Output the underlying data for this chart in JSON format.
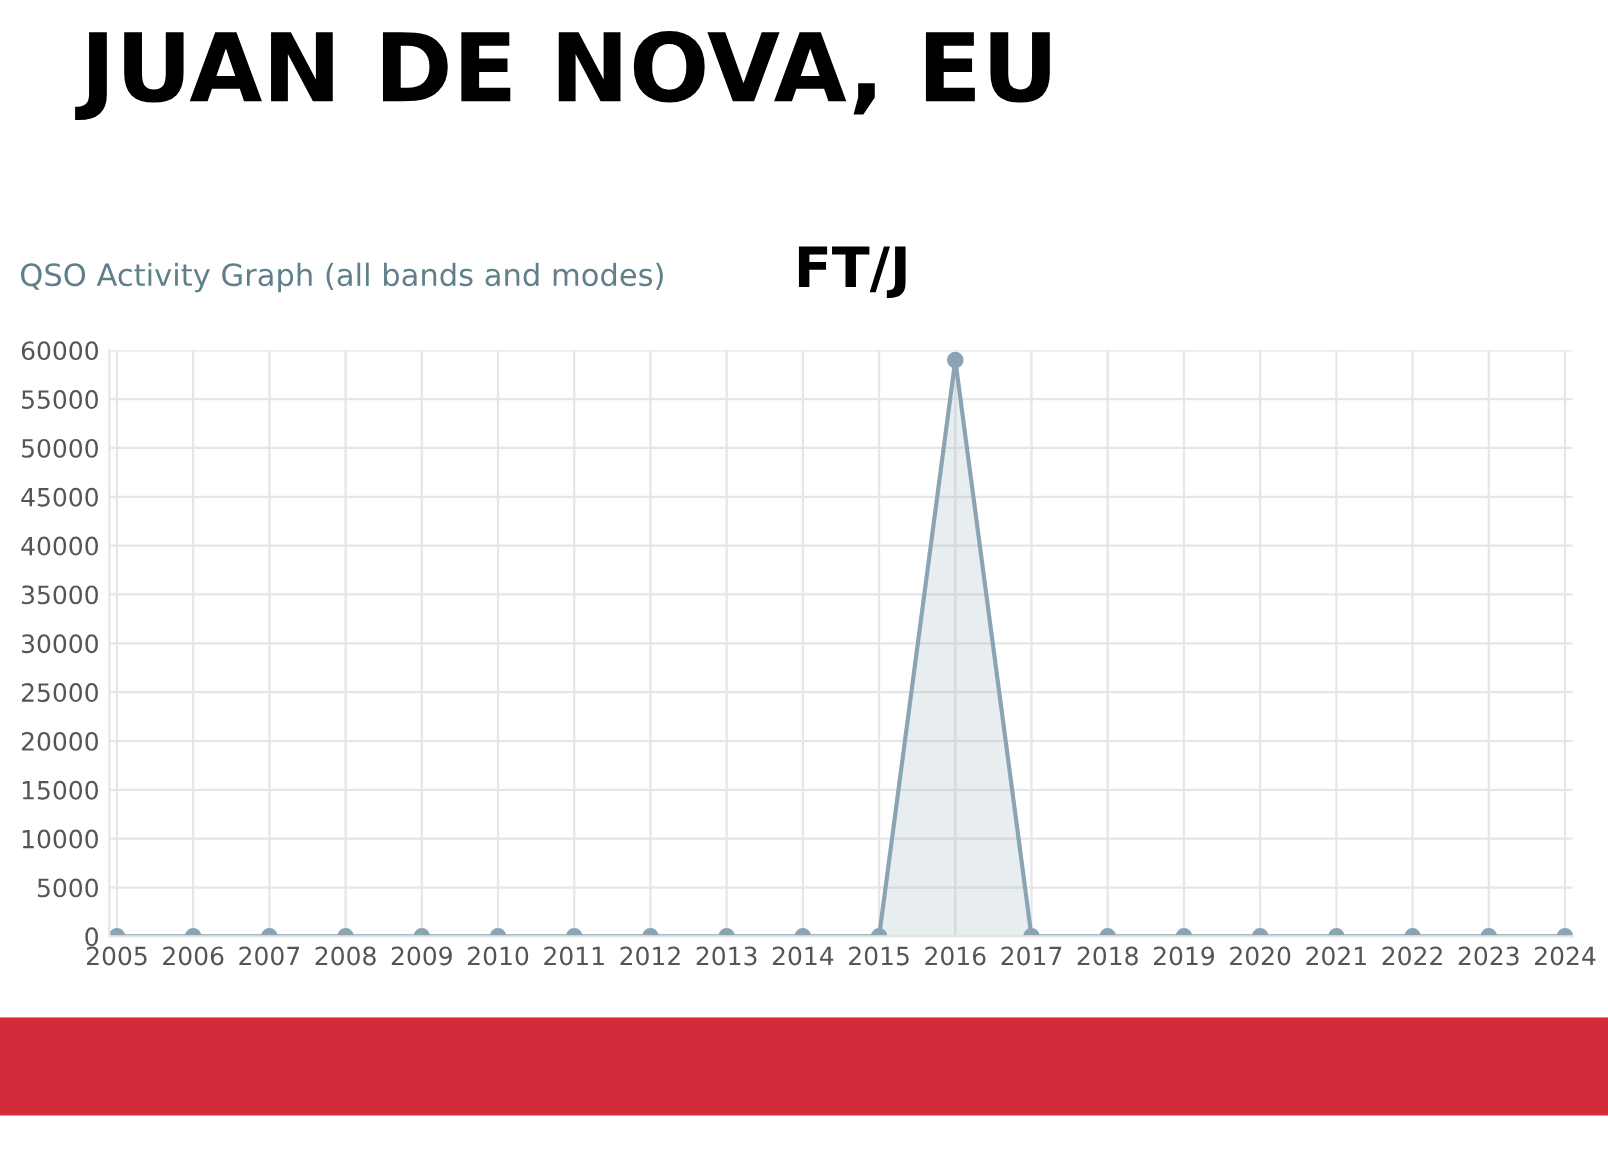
{
  "chart_data": {
    "type": "area",
    "title": "JUAN DE NOVA, EU",
    "subtitle": "FT/J",
    "annotations": [
      "QSO Activity Graph (all bands and modes)"
    ],
    "categories": [
      "2005",
      "2006",
      "2007",
      "2008",
      "2009",
      "2010",
      "2011",
      "2012",
      "2013",
      "2014",
      "2015",
      "2016",
      "2017",
      "2018",
      "2019",
      "2020",
      "2021",
      "2022",
      "2023",
      "2024"
    ],
    "series": [
      {
        "color": "#8aa4b4",
        "values": [
          0,
          0,
          0,
          0,
          0,
          0,
          0,
          0,
          0,
          0,
          0,
          59000,
          0,
          0,
          0,
          0,
          0,
          0,
          0,
          0
        ]
      }
    ],
    "ylim": [
      0,
      60000
    ],
    "yticks": [
      0,
      5000,
      10000,
      15000,
      20000,
      25000,
      30000,
      35000,
      40000,
      45000,
      50000,
      55000,
      60000
    ],
    "grid": true,
    "marker": "circle"
  }
}
